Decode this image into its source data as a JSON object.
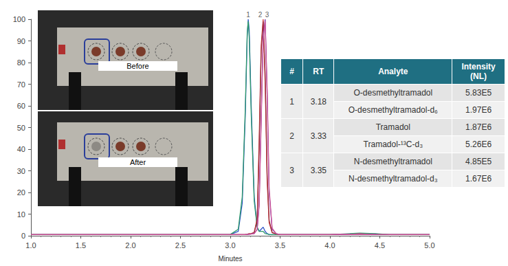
{
  "chart_data": {
    "type": "line",
    "x_label": "Minutes",
    "xlim": [
      1.0,
      5.0
    ],
    "xticks": [
      {
        "value": 1,
        "label": "1.0"
      },
      {
        "value": 1.5,
        "label": "1.5"
      },
      {
        "value": 2,
        "label": "2.0"
      },
      {
        "value": 2.5,
        "label": "2.5"
      },
      {
        "value": 3,
        "label": "3.0"
      },
      {
        "value": 3.5,
        "label": "3.5"
      },
      {
        "value": 4,
        "label": "4.0"
      },
      {
        "value": 4.5,
        "label": "4.5"
      },
      {
        "value": 5,
        "label": "5.0"
      }
    ],
    "ylim": [
      0,
      100
    ],
    "yticks": [
      0,
      10,
      20,
      30,
      40,
      50,
      60,
      70,
      80,
      90,
      100
    ],
    "grid": false,
    "x": [
      1.0,
      2.0,
      3.0,
      3.08,
      3.12,
      3.15,
      3.17,
      3.18,
      3.19,
      3.21,
      3.24,
      3.27,
      3.29,
      3.31,
      3.33,
      3.35,
      3.37,
      3.39,
      3.42,
      3.46,
      3.5,
      4.0,
      4.3,
      4.45,
      4.6,
      5.0
    ],
    "series": [
      {
        "color": "#2f55c8",
        "values": [
          0.5,
          0.5,
          0.6,
          2,
          15,
          55,
          92,
          100,
          95,
          60,
          18,
          4,
          2,
          3,
          4,
          2,
          1,
          0.6,
          0.5,
          0.5,
          0.5,
          0.5,
          1,
          0.8,
          0.5,
          0.5
        ]
      },
      {
        "color": "#2e9a6a",
        "values": [
          0.5,
          0.5,
          0.6,
          3,
          18,
          58,
          94,
          99,
          92,
          56,
          16,
          4,
          2,
          2,
          2,
          1,
          0.8,
          0.6,
          0.5,
          0.5,
          0.5,
          0.5,
          1.2,
          1,
          0.5,
          0.5
        ]
      },
      {
        "color": "#d23a3a",
        "values": [
          0.5,
          0.5,
          0.5,
          0.5,
          0.5,
          0.6,
          0.7,
          0.8,
          0.9,
          1,
          1.5,
          8,
          45,
          88,
          100,
          70,
          25,
          6,
          1.5,
          0.8,
          0.5,
          0.5,
          0.8,
          0.6,
          0.5,
          0.5
        ]
      },
      {
        "color": "#9a2a3a",
        "values": [
          0.5,
          0.5,
          0.5,
          0.5,
          0.5,
          0.6,
          0.7,
          0.8,
          0.9,
          1,
          1.5,
          7,
          40,
          85,
          99,
          75,
          28,
          7,
          1.5,
          0.8,
          0.5,
          0.5,
          0.8,
          0.6,
          0.5,
          0.5
        ]
      },
      {
        "color": "#7a3aa8",
        "values": [
          0.5,
          0.5,
          0.5,
          0.5,
          0.5,
          0.5,
          0.6,
          0.6,
          0.7,
          0.8,
          1,
          3,
          15,
          55,
          92,
          100,
          65,
          20,
          3,
          1,
          0.5,
          0.5,
          0.8,
          0.6,
          0.5,
          0.5
        ]
      },
      {
        "color": "#d0589a",
        "values": [
          0.5,
          0.5,
          0.5,
          0.5,
          0.5,
          0.5,
          0.6,
          0.6,
          0.7,
          0.8,
          1,
          3,
          14,
          52,
          90,
          99,
          68,
          22,
          3.5,
          1,
          0.5,
          0.5,
          0.8,
          0.6,
          0.5,
          0.5
        ]
      }
    ],
    "annotations": [
      {
        "text": "1",
        "x": 3.18,
        "y": 100
      },
      {
        "text": "2",
        "x": 3.3,
        "y": 100
      },
      {
        "text": "3",
        "x": 3.37,
        "y": 100
      }
    ]
  },
  "photos": [
    {
      "label": "Before"
    },
    {
      "label": "After"
    }
  ],
  "table": {
    "header": [
      "#",
      "RT",
      "Analyte",
      "Intensity (NL)"
    ],
    "groups": [
      {
        "number": "1",
        "rt": "3.18",
        "rows": [
          [
            "O-desmethyltramadol",
            "5.83E5"
          ],
          [
            "O-desmethyltramadol-d₆",
            "1.97E6"
          ]
        ]
      },
      {
        "number": "2",
        "rt": "3.33",
        "rows": [
          [
            "Tramadol",
            "1.87E6"
          ],
          [
            "Tramadol-¹³C-d₃",
            "5.26E6"
          ]
        ]
      },
      {
        "number": "3",
        "rt": "3.35",
        "rows": [
          [
            "N-desmethyltramadol",
            "4.85E5"
          ],
          [
            "N-desmethyltramadol-d₃",
            "1.67E6"
          ]
        ]
      }
    ]
  }
}
